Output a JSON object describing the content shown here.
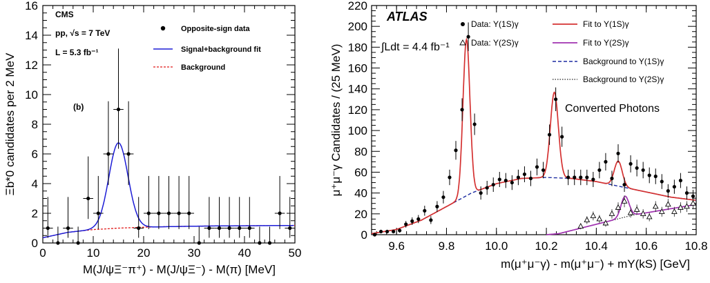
{
  "chart_data": [
    {
      "type": "scatter",
      "panel_label": "(b)",
      "experiment": "CMS",
      "beam_text": "pp, √s = 7 TeV",
      "lumi_text": "L = 5.3 fb⁻¹",
      "xlabel": "M(J/ψΞ⁻π⁺) - M(J/ψΞ⁻) - M(π) [MeV]",
      "ylabel": "Ξb*0 candidates per 2 MeV",
      "xlim": [
        0,
        50
      ],
      "ylim": [
        0,
        16
      ],
      "xticks": [
        0,
        10,
        20,
        30,
        40,
        50
      ],
      "yticks": [
        0,
        2,
        4,
        6,
        8,
        10,
        12,
        14,
        16
      ],
      "legend": [
        "Opposite-sign data",
        "Signal+background fit",
        "Background"
      ],
      "legend_position": "top-right",
      "series": [
        {
          "name": "Opposite-sign data",
          "style": "points",
          "x": [
            1,
            3,
            5,
            7,
            9,
            11,
            13,
            15,
            17,
            19,
            21,
            23,
            25,
            27,
            29,
            31,
            33,
            35,
            37,
            39,
            41,
            43,
            45,
            47,
            49
          ],
          "y": [
            1,
            0,
            1,
            0,
            3,
            2,
            6,
            9,
            6,
            1,
            2,
            2,
            2,
            2,
            2,
            0,
            1,
            1,
            1,
            1,
            1,
            0,
            0,
            2,
            1
          ]
        },
        {
          "name": "Signal+background fit",
          "style": "line",
          "color": "#1b1bd6",
          "peak": {
            "mean": 15.0,
            "sigma": 1.9,
            "height": 5.75
          }
        },
        {
          "name": "Background",
          "style": "dashed",
          "color": "#e01818",
          "x": [
            0,
            5,
            10,
            15,
            20,
            25,
            30,
            35,
            40,
            45,
            50
          ],
          "y": [
            0.35,
            0.72,
            0.9,
            1.0,
            1.06,
            1.1,
            1.13,
            1.15,
            1.16,
            1.17,
            1.18
          ]
        }
      ]
    },
    {
      "type": "scatter",
      "experiment": "ATLAS",
      "lumi_text": "∫Ldt = 4.4 fb⁻¹",
      "annotation": "Converted Photons",
      "xlabel": "m(μ⁺μ⁻γ) - m(μ⁺μ⁻) + mΥ(kS) [GeV]",
      "ylabel": "μ⁺μ⁻γ Candidates / (25 MeV)",
      "xlim": [
        9.5,
        10.8
      ],
      "ylim": [
        0,
        220
      ],
      "xticks": [
        9.6,
        9.8,
        10.0,
        10.2,
        10.4,
        10.6,
        10.8
      ],
      "yticks": [
        0,
        20,
        40,
        60,
        80,
        100,
        120,
        140,
        160,
        180,
        200,
        220
      ],
      "legend": [
        "Data: Υ(1S)γ",
        "Data: Υ(2S)γ",
        "Fit to Υ(1S)γ",
        "Fit to Υ(2S)γ",
        "Background to Υ(1S)γ",
        "Background to Υ(2S)γ"
      ],
      "legend_position": "top-right",
      "series": [
        {
          "name": "Data: Υ(1S)γ",
          "style": "points",
          "x": [
            9.5125,
            9.5375,
            9.5625,
            9.5875,
            9.6125,
            9.6375,
            9.6625,
            9.6875,
            9.7125,
            9.7375,
            9.7625,
            9.7875,
            9.8125,
            9.8375,
            9.8625,
            9.8875,
            9.9125,
            9.9375,
            9.9625,
            9.9875,
            10.0125,
            10.0375,
            10.0625,
            10.0875,
            10.1125,
            10.1375,
            10.1625,
            10.1875,
            10.2125,
            10.2375,
            10.2625,
            10.2875,
            10.3125,
            10.3375,
            10.3625,
            10.3875,
            10.4125,
            10.4375,
            10.4625,
            10.4875,
            10.5125,
            10.5375,
            10.5625,
            10.5875,
            10.6125,
            10.6375,
            10.6625,
            10.6875,
            10.7125,
            10.7375,
            10.7625,
            10.7875
          ],
          "y": [
            0,
            3,
            3,
            3,
            4,
            10,
            13,
            15,
            23,
            14,
            27,
            36,
            55,
            81,
            120,
            190,
            106,
            40,
            45,
            48,
            53,
            52,
            50,
            55,
            58,
            54,
            65,
            62,
            96,
            130,
            94,
            55,
            55,
            55,
            55,
            53,
            62,
            70,
            54,
            78,
            48,
            68,
            64,
            62,
            57,
            56,
            51,
            42,
            46,
            52,
            40,
            37
          ]
        },
        {
          "name": "Data: Υ(2S)γ",
          "style": "points-open",
          "x": [
            10.3375,
            10.3625,
            10.3875,
            10.4125,
            10.4375,
            10.4625,
            10.4875,
            10.5125,
            10.5375,
            10.5625,
            10.5875,
            10.6125,
            10.6375,
            10.6625,
            10.6875,
            10.7125,
            10.7375,
            10.7625,
            10.7875
          ],
          "y": [
            8,
            14,
            18,
            15,
            11,
            20,
            26,
            32,
            21,
            24,
            20,
            17,
            27,
            22,
            29,
            22,
            26,
            27,
            30
          ]
        },
        {
          "name": "Fit to Υ(1S)γ",
          "style": "line",
          "color": "#d43030",
          "peaks": [
            {
              "mean": 9.88,
              "sigma": 0.014,
              "height": 150
            },
            {
              "mean": 10.232,
              "sigma": 0.016,
              "height": 82
            },
            {
              "mean": 10.488,
              "sigma": 0.016,
              "height": 24
            }
          ]
        },
        {
          "name": "Fit to Υ(2S)γ",
          "style": "line",
          "color": "#a030b0",
          "peak": {
            "mean": 10.515,
            "sigma": 0.016,
            "height": 20
          }
        },
        {
          "name": "Background to Υ(1S)γ",
          "style": "dashed",
          "color": "#1a2aa0",
          "x": [
            9.5,
            9.6,
            9.7,
            9.8,
            9.9,
            10.0,
            10.1,
            10.2,
            10.3,
            10.4,
            10.5,
            10.6,
            10.7,
            10.8
          ],
          "y": [
            1,
            5,
            14,
            27,
            40,
            49,
            54,
            55,
            54,
            51,
            46,
            41,
            36,
            33
          ]
        },
        {
          "name": "Background to Υ(2S)γ",
          "style": "dotted",
          "color": "#222222",
          "x": [
            10.2,
            10.25,
            10.3,
            10.35,
            10.4,
            10.45,
            10.5,
            10.55,
            10.6,
            10.65,
            10.7,
            10.75,
            10.8
          ],
          "y": [
            0,
            1,
            4,
            7,
            10,
            13,
            16,
            19,
            21,
            23,
            25,
            27,
            29
          ]
        }
      ]
    }
  ]
}
